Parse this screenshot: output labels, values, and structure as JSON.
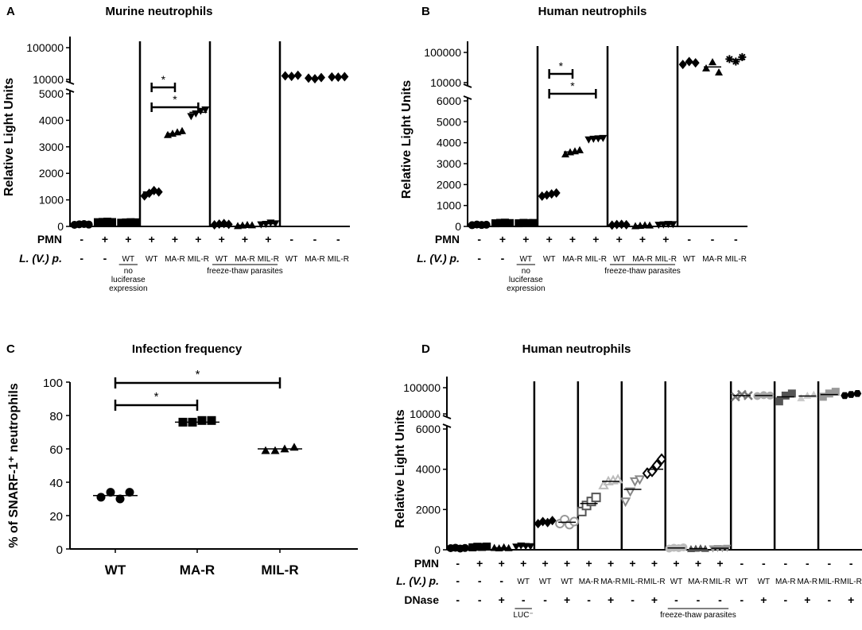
{
  "figure": {
    "panels": [
      {
        "letter": "A",
        "title": "Murine neutrophils"
      },
      {
        "letter": "B",
        "title": "Human neutrophils"
      },
      {
        "letter": "C",
        "title": "Infection frequency"
      },
      {
        "letter": "D",
        "title": "Human neutrophils"
      }
    ]
  },
  "chart_data": [
    {
      "panel": "A",
      "type": "scatter",
      "title": "Murine neutrophils",
      "ylabel": "Relative Light Units",
      "y_axis": {
        "lower_range": [
          0,
          5000
        ],
        "lower_ticks": [
          "0",
          "1000",
          "2000",
          "3000",
          "4000",
          "5000"
        ],
        "upper_ticks": [
          "10000",
          "100000"
        ],
        "scale_break": true
      },
      "row_labels": [
        "PMN",
        "L. (V.) p."
      ],
      "pmn": [
        "-",
        "+",
        "+",
        "+",
        "+",
        "+",
        "+",
        "+",
        "+",
        "-",
        "-",
        "-"
      ],
      "strains": [
        "-",
        "-",
        "WT",
        "WT",
        "MA-R",
        "MIL-R",
        "WT",
        "MA-R",
        "MIL-R",
        "WT",
        "MA-R",
        "MIL-R"
      ],
      "marker_shapes": [
        "circle",
        "square",
        "square",
        "diamond",
        "triangle",
        "triangle-down",
        "diamond",
        "triangle",
        "triangle-down",
        "diamond",
        "diamond",
        "diamond"
      ],
      "group_labels": [
        {
          "text": "no luciferase expression",
          "cols": [
            2,
            2
          ]
        },
        {
          "text": "freeze-thaw parasites",
          "cols": [
            6,
            8
          ]
        }
      ],
      "separators_after": [
        2,
        5,
        8
      ],
      "values": [
        [
          60,
          80,
          90,
          70
        ],
        [
          160,
          170,
          180,
          165
        ],
        [
          140,
          150,
          160,
          155
        ],
        [
          1150,
          1250,
          1350,
          1300
        ],
        [
          3450,
          3500,
          3550,
          3600
        ],
        [
          4150,
          4250,
          4350,
          4400
        ],
        [
          60,
          90,
          110,
          80
        ],
        [
          20,
          40,
          60,
          50
        ],
        [
          70,
          90,
          140,
          110
        ]
      ],
      "upper_values": [
        [
          13000,
          12500,
          13500
        ],
        [
          11000,
          10500,
          11500
        ],
        [
          12000,
          11800,
          12200
        ]
      ],
      "means": [
        75,
        170,
        150,
        1300,
        3500,
        4300,
        85,
        45,
        100,
        12900,
        11000,
        12000
      ],
      "significance": [
        {
          "from": 3,
          "to": 4,
          "label": "*"
        },
        {
          "from": 3,
          "to": 5,
          "label": "*"
        }
      ]
    },
    {
      "panel": "B",
      "type": "scatter",
      "title": "Human neutrophils",
      "ylabel": "Relative Light Units",
      "y_axis": {
        "lower_range": [
          0,
          6000
        ],
        "lower_ticks": [
          "0",
          "1000",
          "2000",
          "3000",
          "4000",
          "5000",
          "6000"
        ],
        "upper_ticks": [
          "10000",
          "100000"
        ],
        "scale_break": true
      },
      "row_labels": [
        "PMN",
        "L. (V.) p."
      ],
      "pmn": [
        "-",
        "+",
        "+",
        "+",
        "+",
        "+",
        "+",
        "+",
        "+",
        "-",
        "-",
        "-"
      ],
      "strains": [
        "-",
        "-",
        "WT",
        "WT",
        "MA-R",
        "MIL-R",
        "WT",
        "MA-R",
        "MIL-R",
        "WT",
        "MA-R",
        "MIL-R"
      ],
      "marker_shapes": [
        "circle",
        "square",
        "square",
        "diamond",
        "triangle",
        "triangle-down",
        "diamond",
        "triangle",
        "triangle-down",
        "diamond",
        "triangle",
        "star"
      ],
      "group_labels": [
        {
          "text": "no luciferase expression",
          "cols": [
            2,
            2
          ]
        },
        {
          "text": "freeze-thaw parasites",
          "cols": [
            6,
            8
          ]
        }
      ],
      "separators_after": [
        2,
        5,
        8
      ],
      "values": [
        [
          60,
          90,
          70,
          80
        ],
        [
          150,
          170,
          180,
          160
        ],
        [
          150,
          170,
          160,
          165
        ],
        [
          1450,
          1500,
          1550,
          1600
        ],
        [
          3450,
          3550,
          3600,
          3650
        ],
        [
          4150,
          4180,
          4200,
          4220
        ],
        [
          60,
          90,
          100,
          80
        ],
        [
          20,
          40,
          60,
          50
        ],
        [
          70,
          90,
          110,
          100
        ]
      ],
      "upper_values": [
        [
          40000,
          50000,
          45000
        ],
        [
          30000,
          48000,
          22000
        ],
        [
          60000,
          50000,
          70000
        ]
      ],
      "means": [
        75,
        165,
        160,
        1525,
        3560,
        4190,
        85,
        45,
        95,
        45000,
        33000,
        58000
      ],
      "significance": [
        {
          "from": 3,
          "to": 4,
          "label": "*"
        },
        {
          "from": 3,
          "to": 5,
          "label": "*"
        }
      ]
    },
    {
      "panel": "C",
      "type": "scatter",
      "title": "Infection frequency",
      "ylabel": "% of SNARF-1⁺ neutrophils",
      "ylim": [
        0,
        100
      ],
      "yticks": [
        "0",
        "20",
        "40",
        "60",
        "80",
        "100"
      ],
      "categories": [
        "WT",
        "MA-R",
        "MIL-R"
      ],
      "marker_shapes": [
        "circle",
        "square",
        "triangle"
      ],
      "values": [
        [
          31,
          34,
          30,
          34
        ],
        [
          76,
          76,
          77,
          77
        ],
        [
          59,
          59,
          60,
          61
        ]
      ],
      "means": [
        32,
        76,
        60
      ],
      "significance": [
        {
          "from": 0,
          "to": 1,
          "label": "*"
        },
        {
          "from": 0,
          "to": 2,
          "label": "*"
        }
      ]
    },
    {
      "panel": "D",
      "type": "scatter",
      "title": "Human neutrophils",
      "ylabel": "Relative Light Units",
      "y_axis": {
        "lower_range": [
          0,
          6000
        ],
        "lower_ticks": [
          "0",
          "2000",
          "4000",
          "6000"
        ],
        "upper_ticks": [
          "10000",
          "100000"
        ],
        "scale_break": true
      },
      "row_labels": [
        "PMN",
        "L. (V.) p.",
        "DNase"
      ],
      "pmn": [
        "-",
        "+",
        "+",
        "+",
        "+",
        "+",
        "+",
        "+",
        "+",
        "+",
        "+",
        "+",
        "+",
        "-",
        "-",
        "-",
        "-",
        "-",
        "-"
      ],
      "strains": [
        "-",
        "-",
        "-",
        "WT",
        "WT",
        "WT",
        "MA-R",
        "MA-R",
        "MIL-R",
        "MIL-R",
        "WT",
        "MA-R",
        "MIL-R",
        "WT",
        "WT",
        "MA-R",
        "MA-R",
        "MIL-R",
        "MIL-R"
      ],
      "dnase": [
        "-",
        "-",
        "+",
        "-",
        "-",
        "+",
        "-",
        "+",
        "-",
        "+",
        "-",
        "-",
        "-",
        "-",
        "+",
        "-",
        "+",
        "-",
        "+"
      ],
      "marker_shapes": [
        "circle",
        "square",
        "triangle",
        "triangle-down",
        "diamond",
        "circle-open",
        "square-open",
        "triangle-open",
        "triangle-down-open",
        "diamond-open",
        "circle",
        "triangle",
        "triangle-down",
        "cross",
        "circle",
        "square",
        "triangle",
        "square",
        "hexagon"
      ],
      "marker_colors": [
        "#000000",
        "#000000",
        "#000000",
        "#000000",
        "#000000",
        "#999999",
        "#555555",
        "#bbbbbb",
        "#888888",
        "#000000",
        "#bbbbbb",
        "#555555",
        "#999999",
        "#777777",
        "#aaaaaa",
        "#555555",
        "#cccccc",
        "#999999",
        "#000000"
      ],
      "group_labels": [
        {
          "text": "LUC⁻",
          "cols": [
            3,
            3
          ]
        },
        {
          "text": "freeze-thaw parasites",
          "cols": [
            10,
            12
          ]
        }
      ],
      "separators_after": [
        3,
        5,
        7,
        9,
        12,
        14,
        16
      ],
      "values": [
        [
          80,
          100,
          60,
          90
        ],
        [
          120,
          150,
          140,
          160
        ],
        [
          100,
          80,
          130,
          90
        ],
        [
          150,
          200,
          180,
          170
        ],
        [
          1300,
          1400,
          1350,
          1450
        ],
        [
          1300,
          1500,
          1250,
          1400
        ],
        [
          1900,
          2200,
          2400,
          2600
        ],
        [
          3200,
          3400,
          3450,
          3500
        ],
        [
          2400,
          2900,
          3400,
          3500
        ],
        [
          3800,
          3900,
          4200,
          4500
        ],
        [
          60,
          100,
          80,
          120
        ],
        [
          40,
          60,
          80,
          50
        ],
        [
          60,
          80,
          70,
          90
        ]
      ],
      "upper_values": [
        [
          45000,
          55000,
          50000
        ],
        [
          48000,
          52000,
          50000
        ],
        [
          30000,
          50000,
          60000
        ],
        [
          40000,
          50000,
          55000
        ],
        [
          45000,
          60000,
          70000
        ],
        [
          50000,
          55000,
          60000
        ]
      ],
      "means": [
        85,
        145,
        100,
        175,
        1375,
        1365,
        2300,
        3400,
        3000,
        4000,
        90,
        55,
        75,
        50000,
        50000,
        45000,
        48000,
        55000,
        55000
      ],
      "significance": []
    }
  ]
}
